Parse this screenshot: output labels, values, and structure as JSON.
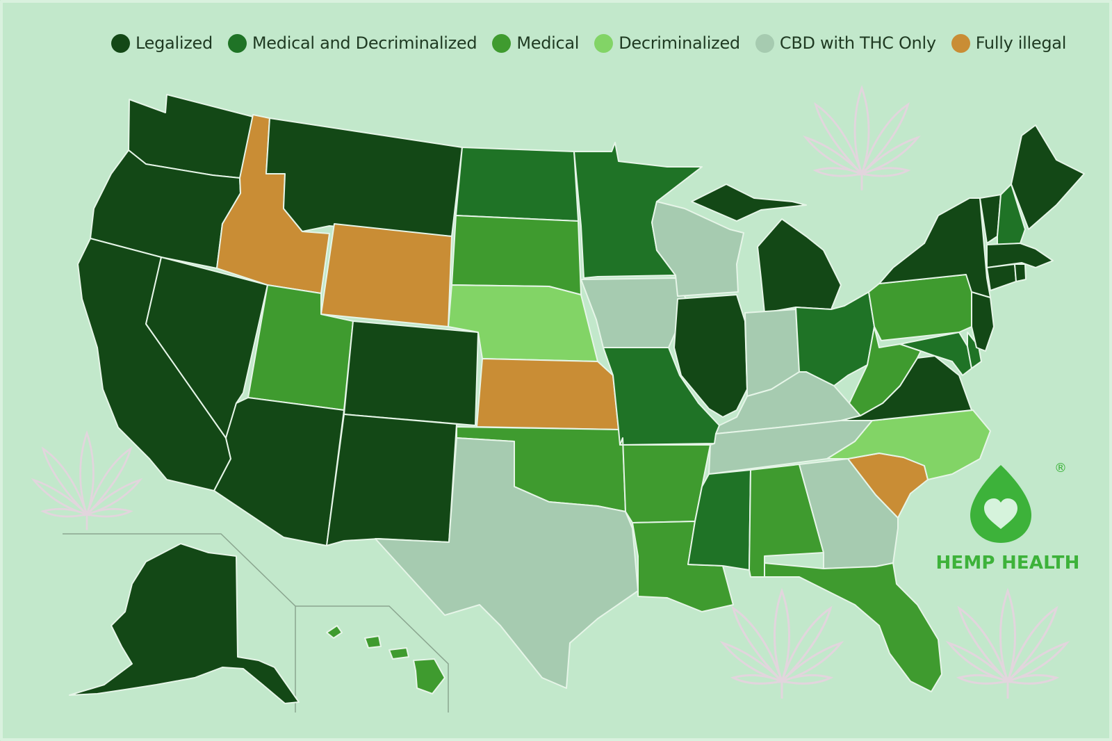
{
  "legend": [
    {
      "label": "Legalized",
      "color": "#134816"
    },
    {
      "label": "Medical and Decriminalized",
      "color": "#1f7326"
    },
    {
      "label": "Medical",
      "color": "#3f9b2f"
    },
    {
      "label": "Decriminalized",
      "color": "#82d466"
    },
    {
      "label": "CBD with THC Only",
      "color": "#a6cbb0"
    },
    {
      "label": "Fully illegal",
      "color": "#c98d35"
    }
  ],
  "status_colors": {
    "legalized": "#134816",
    "medical_decriminalized": "#1f7326",
    "medical": "#3f9b2f",
    "decriminalized": "#82d466",
    "cbd_thc_only": "#a6cbb0",
    "illegal": "#c98d35"
  },
  "map": {
    "states": {
      "WA": "legalized",
      "OR": "legalized",
      "CA": "legalized",
      "NV": "legalized",
      "ID": "illegal",
      "MT": "legalized",
      "WY": "illegal",
      "UT": "medical",
      "AZ": "legalized",
      "CO": "legalized",
      "NM": "legalized",
      "ND": "medical_decriminalized",
      "SD": "medical",
      "NE": "decriminalized",
      "KS": "illegal",
      "OK": "medical",
      "TX": "cbd_thc_only",
      "MN": "medical_decriminalized",
      "IA": "cbd_thc_only",
      "MO": "medical_decriminalized",
      "AR": "medical",
      "LA": "medical",
      "WI": "cbd_thc_only",
      "IL": "legalized",
      "MI": "legalized",
      "IN": "cbd_thc_only",
      "OH": "medical_decriminalized",
      "KY": "cbd_thc_only",
      "TN": "cbd_thc_only",
      "MS": "medical_decriminalized",
      "AL": "medical",
      "GA": "cbd_thc_only",
      "FL": "medical",
      "SC": "illegal",
      "NC": "decriminalized",
      "VA": "legalized",
      "WV": "medical",
      "PA": "medical",
      "NY": "legalized",
      "NJ": "legalized",
      "MD": "medical_decriminalized",
      "DE": "medical_decriminalized",
      "VT": "legalized",
      "NH": "medical_decriminalized",
      "ME": "legalized",
      "MA": "legalized",
      "CT": "legalized",
      "RI": "legalized",
      "AK": "legalized",
      "HI": "medical"
    }
  },
  "brand": {
    "name": "HEMP HEALTH",
    "registered": "®",
    "logo_icon": "heart-drop-icon",
    "logo_color": "#3db23a"
  },
  "decoration_icon": "hemp-leaf-icon"
}
